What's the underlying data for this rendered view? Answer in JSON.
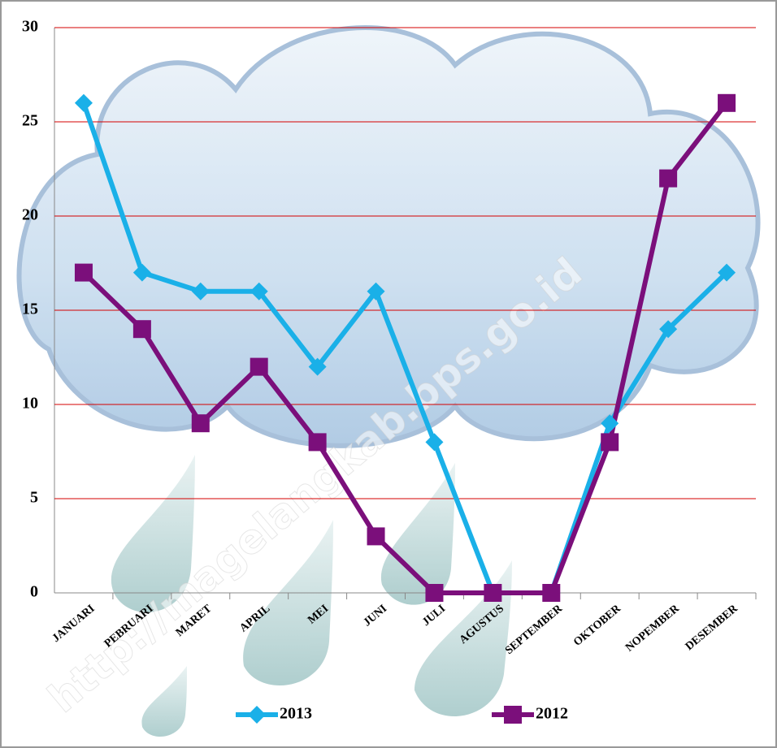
{
  "chart_data": {
    "type": "line",
    "categories": [
      "JANUARI",
      "PEBRUARI",
      "MARET",
      "APRIL",
      "MEI",
      "JUNI",
      "JULI",
      "AGUSTUS",
      "SEPTEMBER",
      "OKTOBER",
      "NOPEMBER",
      "DESEMBER"
    ],
    "series": [
      {
        "name": "2013",
        "color": "#1ab0e8",
        "marker": "diamond",
        "values": [
          26,
          17,
          16,
          16,
          12,
          16,
          8,
          0,
          0,
          9,
          14,
          17
        ]
      },
      {
        "name": "2012",
        "color": "#7b0f7b",
        "marker": "square",
        "values": [
          17,
          14,
          9,
          12,
          8,
          3,
          0,
          0,
          0,
          8,
          22,
          26
        ]
      }
    ],
    "ylim": [
      0,
      30
    ],
    "yticks": [
      0,
      5,
      10,
      15,
      20,
      25,
      30
    ],
    "grid": true,
    "grid_color": "#d40000",
    "legend": "bottom",
    "watermark": "http://magelangkab.bps.go.id"
  }
}
